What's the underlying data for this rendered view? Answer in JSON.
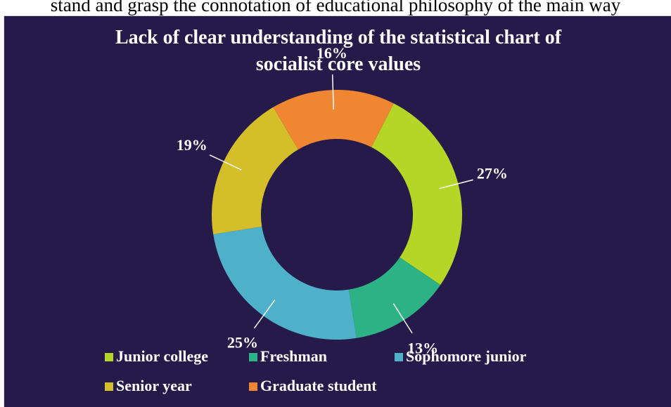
{
  "header_text": "stand and grasp the connotation of educational philosophy of the main way",
  "chart_data": {
    "type": "donut",
    "title": "Lack of clear understanding of the statistical chart of socialist core values",
    "categories": [
      "Junior college",
      "Freshman",
      "Sophomore junior",
      "Senior year",
      "Graduate student"
    ],
    "values": [
      27,
      13,
      25,
      19,
      16
    ],
    "value_labels": [
      "27%",
      "13%",
      "25%",
      "19%",
      "16%"
    ],
    "colors": [
      "#b5d626",
      "#2db285",
      "#4fb0c9",
      "#d4be2a",
      "#f08532"
    ],
    "legend": "bottom"
  }
}
